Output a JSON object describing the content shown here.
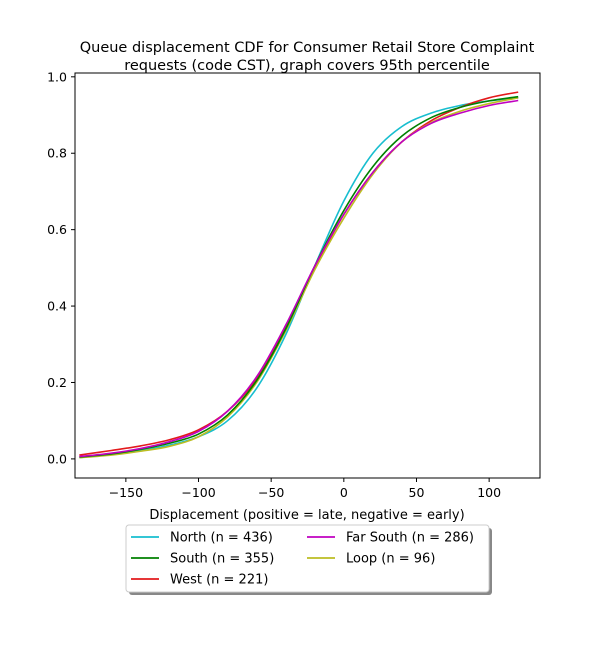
{
  "chart_data": {
    "type": "line",
    "title_lines": [
      "Queue displacement CDF for Consumer Retail Store Complaint",
      "requests (code CST), graph covers 95th percentile"
    ],
    "xlabel": "Displacement (positive = late, negative = early)",
    "ylabel": "",
    "xlim": [
      -185,
      135
    ],
    "ylim": [
      -0.05,
      1.01
    ],
    "x_ticks": [
      -150,
      -100,
      -50,
      0,
      50,
      100
    ],
    "x_tick_labels": [
      "−150",
      "−100",
      "−50",
      "0",
      "50",
      "100"
    ],
    "y_ticks": [
      0.0,
      0.2,
      0.4,
      0.6,
      0.8,
      1.0
    ],
    "y_tick_labels": [
      "0.0",
      "0.2",
      "0.4",
      "0.6",
      "0.8",
      "1.0"
    ],
    "grid": false,
    "legend_position": "below plot, two columns",
    "series": [
      {
        "name": "North (n = 436)",
        "color": "#17becf",
        "x": [
          -182,
          -160,
          -140,
          -120,
          -100,
          -80,
          -60,
          -40,
          -20,
          0,
          20,
          40,
          60,
          80,
          100,
          120
        ],
        "y": [
          0.004,
          0.012,
          0.022,
          0.036,
          0.058,
          0.1,
          0.185,
          0.325,
          0.505,
          0.675,
          0.8,
          0.87,
          0.905,
          0.925,
          0.937,
          0.945
        ]
      },
      {
        "name": "West (n = 221)",
        "color": "#e31a1c",
        "x": [
          -182,
          -160,
          -140,
          -120,
          -100,
          -80,
          -60,
          -40,
          -20,
          0,
          20,
          40,
          60,
          80,
          100,
          120
        ],
        "y": [
          0.01,
          0.022,
          0.034,
          0.05,
          0.076,
          0.125,
          0.21,
          0.345,
          0.5,
          0.64,
          0.75,
          0.83,
          0.885,
          0.92,
          0.945,
          0.96
        ]
      },
      {
        "name": "Loop (n = 96)",
        "color": "#bcbd22",
        "x": [
          -182,
          -160,
          -140,
          -120,
          -100,
          -80,
          -60,
          -40,
          -20,
          0,
          20,
          40,
          60,
          80,
          100,
          120
        ],
        "y": [
          0.003,
          0.01,
          0.02,
          0.033,
          0.058,
          0.11,
          0.2,
          0.335,
          0.495,
          0.63,
          0.745,
          0.83,
          0.88,
          0.91,
          0.93,
          0.945
        ]
      },
      {
        "name": "South (n = 355)",
        "color": "#008000",
        "x": [
          -182,
          -160,
          -140,
          -120,
          -100,
          -80,
          -60,
          -40,
          -20,
          0,
          20,
          40,
          60,
          80,
          100,
          120
        ],
        "y": [
          0.005,
          0.013,
          0.025,
          0.041,
          0.065,
          0.115,
          0.205,
          0.34,
          0.505,
          0.65,
          0.765,
          0.845,
          0.893,
          0.92,
          0.937,
          0.948
        ]
      },
      {
        "name": "Far South (n = 286)",
        "color": "#c000c0",
        "x": [
          -182,
          -160,
          -140,
          -120,
          -100,
          -80,
          -60,
          -40,
          -20,
          0,
          20,
          40,
          60,
          80,
          100,
          120
        ],
        "y": [
          0.006,
          0.015,
          0.027,
          0.045,
          0.072,
          0.125,
          0.215,
          0.35,
          0.505,
          0.64,
          0.75,
          0.83,
          0.878,
          0.905,
          0.925,
          0.938
        ]
      }
    ],
    "legend_order": [
      0,
      3,
      1,
      4,
      2
    ]
  }
}
